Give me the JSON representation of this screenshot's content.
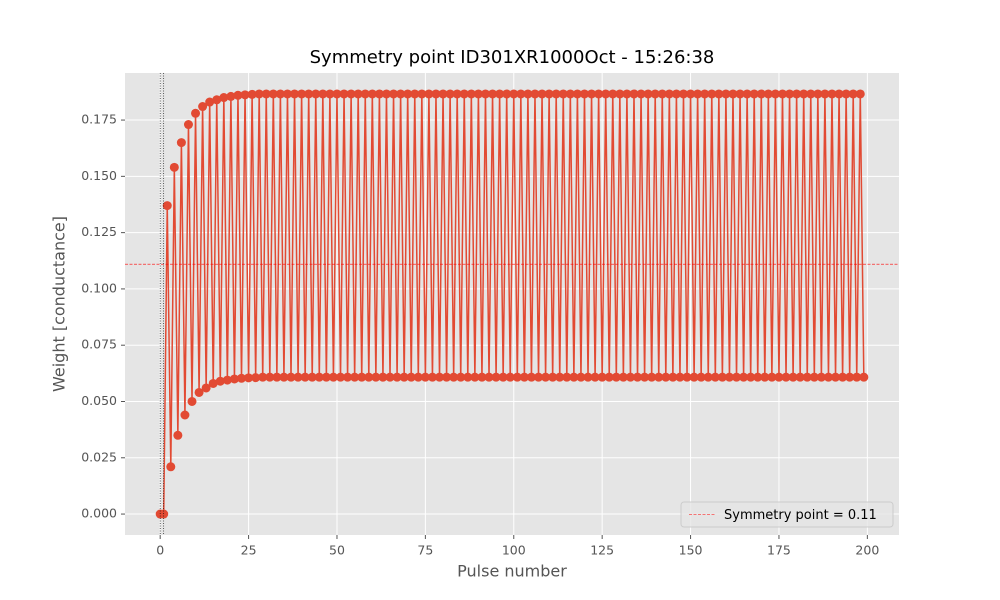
{
  "chart_data": {
    "type": "line",
    "title": "Symmetry point ID301XR1000Oct - 15:26:38",
    "xlabel": "Pulse number",
    "ylabel": "Weight [conductance]",
    "x": [
      0,
      1,
      2,
      3,
      4,
      5,
      6,
      7,
      8,
      9,
      10,
      11,
      12,
      13,
      14,
      15,
      16,
      17,
      18,
      19,
      20,
      21,
      22,
      23,
      24,
      25,
      26,
      27,
      28,
      29,
      30,
      31,
      32,
      33,
      34,
      35,
      36,
      37,
      38,
      39,
      40,
      41,
      42,
      43,
      44,
      45,
      46,
      47,
      48,
      49,
      50,
      51,
      52,
      53,
      54,
      55,
      56,
      57,
      58,
      59,
      60,
      61,
      62,
      63,
      64,
      65,
      66,
      67,
      68,
      69,
      70,
      71,
      72,
      73,
      74,
      75,
      76,
      77,
      78,
      79,
      80,
      81,
      82,
      83,
      84,
      85,
      86,
      87,
      88,
      89,
      90,
      91,
      92,
      93,
      94,
      95,
      96,
      97,
      98,
      99,
      100,
      101,
      102,
      103,
      104,
      105,
      106,
      107,
      108,
      109,
      110,
      111,
      112,
      113,
      114,
      115,
      116,
      117,
      118,
      119,
      120,
      121,
      122,
      123,
      124,
      125,
      126,
      127,
      128,
      129,
      130,
      131,
      132,
      133,
      134,
      135,
      136,
      137,
      138,
      139,
      140,
      141,
      142,
      143,
      144,
      145,
      146,
      147,
      148,
      149,
      150,
      151,
      152,
      153,
      154,
      155,
      156,
      157,
      158,
      159,
      160,
      161,
      162,
      163,
      164,
      165,
      166,
      167,
      168,
      169,
      170,
      171,
      172,
      173,
      174,
      175,
      176,
      177,
      178,
      179,
      180,
      181,
      182,
      183,
      184,
      185,
      186,
      187,
      188,
      189,
      190,
      191,
      192,
      193,
      194,
      195,
      196,
      197,
      198,
      199
    ],
    "series": [
      {
        "color": "#e24a33",
        "values": [
          0,
          0,
          0.137,
          0.021,
          0.154,
          0.035,
          0.165,
          0.044,
          0.173,
          0.05,
          0.178,
          0.054,
          0.181,
          0.056,
          0.183,
          0.058,
          0.184,
          0.059,
          0.185,
          0.0595,
          0.1855,
          0.06,
          0.186,
          0.0603,
          0.1862,
          0.0605,
          0.1864,
          0.0606,
          0.1866,
          0.0608,
          0.1866,
          0.0608,
          0.1866,
          0.0608,
          0.1866,
          0.0608,
          0.1866,
          0.0608,
          0.1866,
          0.0608,
          0.1866,
          0.0608,
          0.1866,
          0.0608,
          0.1866,
          0.0608,
          0.1866,
          0.0608,
          0.1866,
          0.0608,
          0.1866,
          0.0608,
          0.1866,
          0.0608,
          0.1866,
          0.0608,
          0.1866,
          0.0608,
          0.1866,
          0.0608,
          0.1866,
          0.0608,
          0.1866,
          0.0608,
          0.1866,
          0.0608,
          0.1866,
          0.0608,
          0.1866,
          0.0608,
          0.1866,
          0.0608,
          0.1866,
          0.0608,
          0.1866,
          0.0608,
          0.1866,
          0.0608,
          0.1866,
          0.0608,
          0.1866,
          0.0608,
          0.1866,
          0.0608,
          0.1866,
          0.0608,
          0.1866,
          0.0608,
          0.1866,
          0.0608,
          0.1866,
          0.0608,
          0.1866,
          0.0608,
          0.1866,
          0.0608,
          0.1866,
          0.0608,
          0.1866,
          0.0608,
          0.1866,
          0.0608,
          0.1866,
          0.0608,
          0.1866,
          0.0608,
          0.1866,
          0.0608,
          0.1866,
          0.0608,
          0.1866,
          0.0608,
          0.1866,
          0.0608,
          0.1866,
          0.0608,
          0.1866,
          0.0608,
          0.1866,
          0.0608,
          0.1866,
          0.0608,
          0.1866,
          0.0608,
          0.1866,
          0.0608,
          0.1866,
          0.0608,
          0.1866,
          0.0608,
          0.1866,
          0.0608,
          0.1866,
          0.0608,
          0.1866,
          0.0608,
          0.1866,
          0.0608,
          0.1866,
          0.0608,
          0.1866,
          0.0608,
          0.1866,
          0.0608,
          0.1866,
          0.0608,
          0.1866,
          0.0608,
          0.1866,
          0.0608,
          0.1866,
          0.0608,
          0.1866,
          0.0608,
          0.1866,
          0.0608,
          0.1866,
          0.0608,
          0.1866,
          0.0608,
          0.1866,
          0.0608,
          0.1866,
          0.0608,
          0.1866,
          0.0608,
          0.1866,
          0.0608,
          0.1866,
          0.0608,
          0.1866,
          0.0608,
          0.1866,
          0.0608,
          0.1866,
          0.0608,
          0.1866,
          0.0608,
          0.1866,
          0.0608,
          0.1866,
          0.0608,
          0.1866,
          0.0608,
          0.1866,
          0.0608,
          0.1866,
          0.0608,
          0.1866,
          0.0608,
          0.1866,
          0.0608,
          0.1866,
          0.0608,
          0.1866,
          0.0608,
          0.1866,
          0.0608,
          0.1866,
          0.0608
        ]
      }
    ],
    "hline": {
      "name": "Symmetry point = 0.11",
      "value": 0.111,
      "color": "#ff0000"
    },
    "vlines": [
      0,
      1
    ],
    "xlim": [
      -9.95,
      208.95
    ],
    "xticks": [
      0,
      25,
      50,
      75,
      100,
      125,
      150,
      175,
      200
    ],
    "ylim": [
      -0.0093,
      0.1959
    ],
    "yticks": [
      {
        "value": 0,
        "label": "0.000"
      },
      {
        "value": 0.025,
        "label": "0.025"
      },
      {
        "value": 0.05,
        "label": "0.050"
      },
      {
        "value": 0.075,
        "label": "0.075"
      },
      {
        "value": 0.1,
        "label": "0.100"
      },
      {
        "value": 0.125,
        "label": "0.125"
      },
      {
        "value": 0.15,
        "label": "0.150"
      },
      {
        "value": 0.175,
        "label": "0.175"
      }
    ],
    "grid": true,
    "legend": "lower right"
  }
}
